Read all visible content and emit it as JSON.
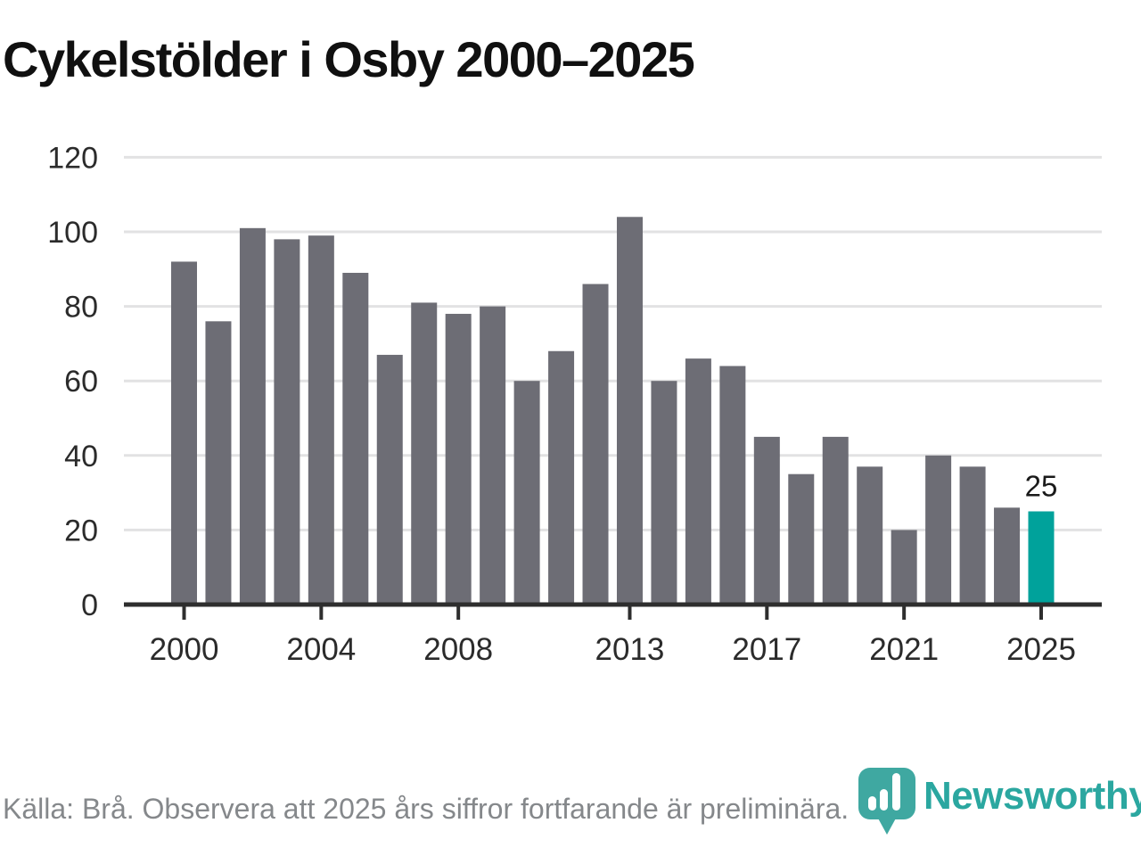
{
  "page": {
    "title": "Cykelstölder i Osby 2000–2025",
    "source_note": "Källa: Brå. Observera att 2025 års siffror fortfarande är preliminära.",
    "background_color": "#ffffff"
  },
  "branding": {
    "wordmark": "Newsworthy",
    "wordmark_color": "#2ba7a0",
    "icon": "newsworthy-speech-bubble-barchart-icon",
    "icon_color": "#3fa8a1",
    "icon_bar_color": "#ffffff"
  },
  "chart_data": {
    "type": "bar",
    "title": "Cykelstölder i Osby 2000–2025",
    "categories": [
      2000,
      2001,
      2002,
      2003,
      2004,
      2005,
      2006,
      2007,
      2008,
      2009,
      2010,
      2011,
      2012,
      2013,
      2014,
      2015,
      2016,
      2017,
      2018,
      2019,
      2020,
      2021,
      2022,
      2023,
      2024,
      2025
    ],
    "values": [
      92,
      76,
      101,
      98,
      99,
      89,
      67,
      81,
      78,
      80,
      60,
      68,
      86,
      104,
      60,
      66,
      64,
      45,
      35,
      45,
      37,
      20,
      40,
      37,
      26,
      25
    ],
    "highlight_index": 25,
    "highlight_value_label": "25",
    "xlabel": "",
    "ylabel": "",
    "ylim": [
      0,
      120
    ],
    "y_ticks": [
      0,
      20,
      40,
      60,
      80,
      100,
      120
    ],
    "x_tick_years": [
      2000,
      2004,
      2008,
      2013,
      2017,
      2021,
      2025
    ],
    "grid": "horizontal",
    "legend": "none",
    "bar_color": "#6d6d75",
    "highlight_color": "#00a29b",
    "gridline_color": "#e2e2e3",
    "axis_color": "#2e2e2e",
    "tick_label_color": "#2b2b2b",
    "annotation_color": "#1a1a1a"
  }
}
